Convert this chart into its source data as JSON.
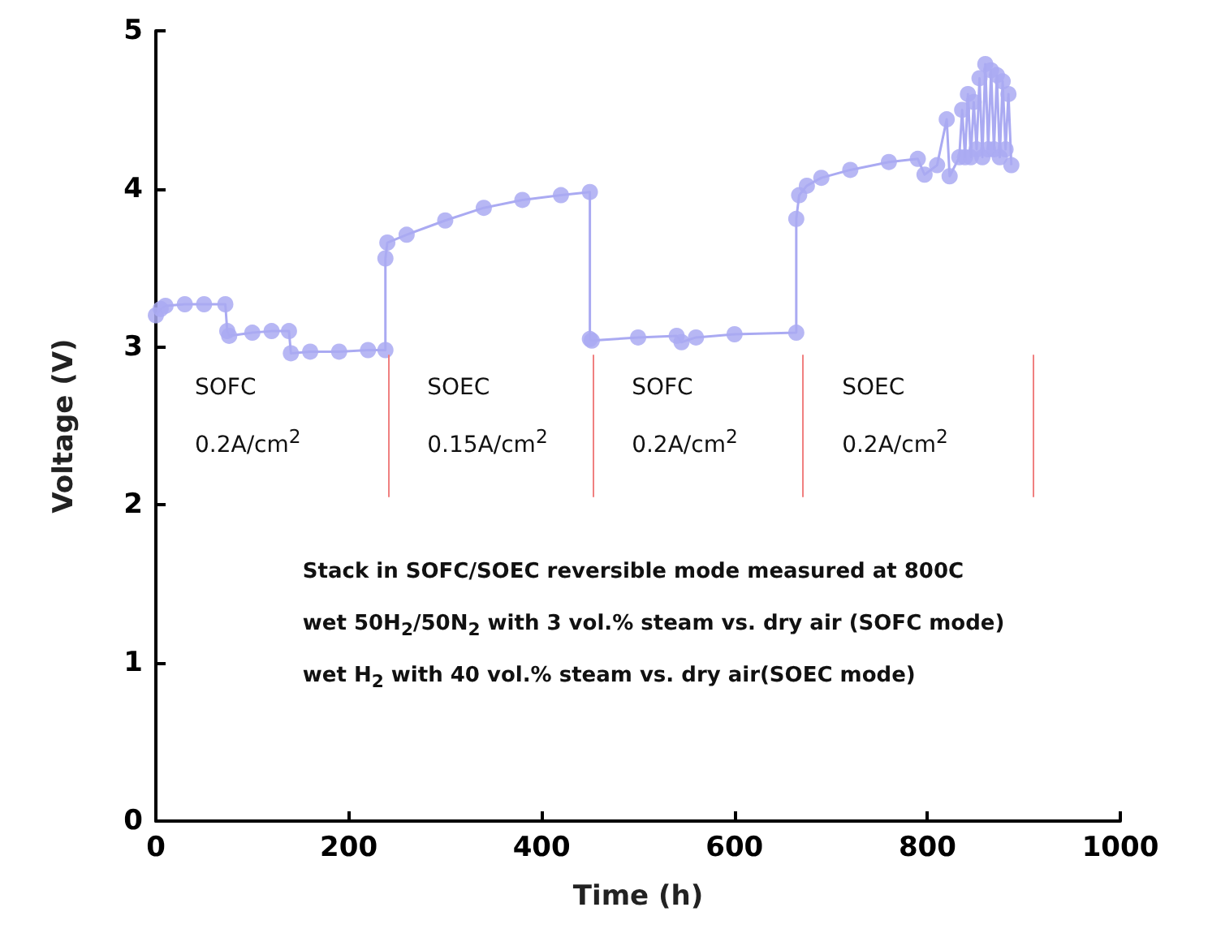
{
  "chart_data": {
    "type": "line",
    "xlabel": "Time (h)",
    "ylabel": "Voltage (V)",
    "xlim": [
      0,
      1000
    ],
    "xticks": [
      0,
      200,
      400,
      600,
      800,
      1000
    ],
    "ylim": [
      0,
      5
    ],
    "yticks": [
      0,
      1,
      2,
      3,
      4,
      5
    ],
    "marker": "circle",
    "line_style": "solid",
    "series": [
      {
        "color": "#aaaaf2",
        "x": [
          0,
          5,
          10,
          30,
          50,
          72,
          74,
          76,
          100,
          120,
          138,
          140,
          160,
          190,
          220,
          238,
          238,
          240,
          260,
          300,
          340,
          380,
          420,
          450,
          450,
          452,
          500,
          540,
          545,
          560,
          600,
          664,
          664,
          667,
          675,
          690,
          720,
          760,
          790,
          797,
          810,
          820,
          823,
          833,
          836,
          839,
          842,
          845,
          848,
          851,
          854,
          857,
          860,
          863,
          866,
          869,
          872,
          875,
          878,
          881,
          884,
          887
        ],
        "values": [
          3.2,
          3.24,
          3.26,
          3.27,
          3.27,
          3.27,
          3.1,
          3.07,
          3.09,
          3.1,
          3.1,
          2.96,
          2.97,
          2.97,
          2.98,
          2.98,
          3.56,
          3.66,
          3.71,
          3.8,
          3.88,
          3.93,
          3.96,
          3.98,
          3.05,
          3.04,
          3.06,
          3.07,
          3.03,
          3.06,
          3.08,
          3.09,
          3.81,
          3.96,
          4.02,
          4.07,
          4.12,
          4.17,
          4.19,
          4.09,
          4.15,
          4.44,
          4.08,
          4.2,
          4.5,
          4.2,
          4.6,
          4.2,
          4.55,
          4.25,
          4.7,
          4.2,
          4.79,
          4.25,
          4.75,
          4.25,
          4.72,
          4.2,
          4.68,
          4.25,
          4.6,
          4.15
        ]
      }
    ],
    "ref_lines": [
      {
        "axis": "x",
        "value": 241,
        "color": "#f08080"
      },
      {
        "axis": "x",
        "value": 453,
        "color": "#f08080"
      },
      {
        "axis": "x",
        "value": 671,
        "color": "#f08080"
      },
      {
        "axis": "x",
        "value": 910,
        "color": "#f08080"
      }
    ],
    "annotations": [
      "SOFC\n0.2A/cm$^{2}$",
      "SOEC\n0.15A/cm$^{2}$",
      "SOFC\n0.2A/cm$^{2}$",
      "SOEC\n0.2A/cm$^{2}$",
      "Stack in SOFC/SOEC reversible mode measured at 800C",
      "wet 50H$_{2}$/50N$_{2}$ with 3 vol.% steam vs. dry air (SOFC mode)",
      "wet H$_{2}$ with 40 vol.% steam vs. dry air(SOEC mode)"
    ]
  }
}
